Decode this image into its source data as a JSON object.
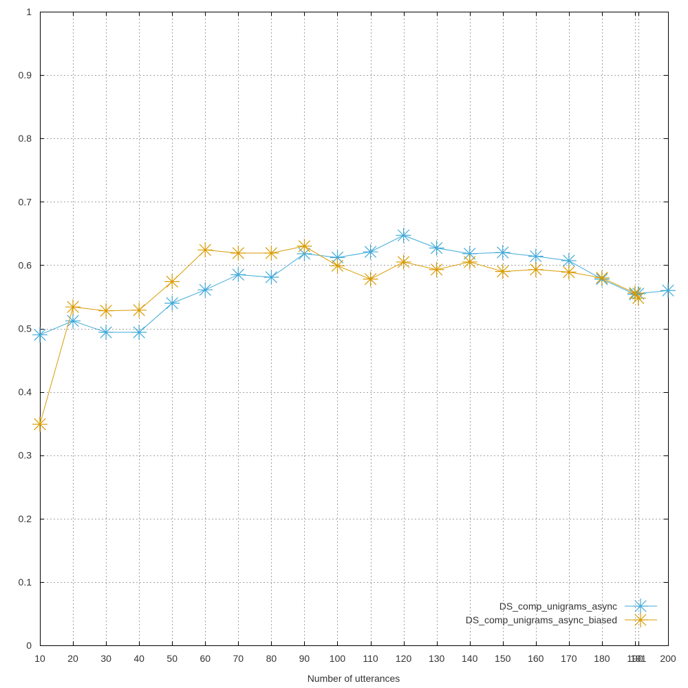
{
  "chart_data": {
    "type": "line",
    "title": "",
    "xlabel": "Number of utterances",
    "ylabel": "",
    "xlim": [
      10,
      200
    ],
    "ylim": [
      0,
      1
    ],
    "x_ticks": [
      10,
      20,
      30,
      40,
      50,
      60,
      70,
      80,
      90,
      100,
      110,
      120,
      130,
      140,
      150,
      160,
      170,
      180,
      190,
      191,
      200
    ],
    "x_tick_labels": [
      "10",
      "20",
      "30",
      "40",
      "50",
      "60",
      "70",
      "80",
      "90",
      "100",
      "110",
      "120",
      "130",
      "140",
      "150",
      "160",
      "170",
      "180",
      "190",
      "191",
      "200"
    ],
    "y_ticks": [
      0,
      0.1,
      0.2,
      0.3,
      0.4,
      0.5,
      0.6,
      0.7,
      0.8,
      0.9,
      1
    ],
    "y_tick_labels": [
      "0",
      "0.1",
      "0.2",
      "0.3",
      "0.4",
      "0.5",
      "0.6",
      "0.7",
      "0.8",
      "0.9",
      "1"
    ],
    "grid": true,
    "legend_position": "bottom-right",
    "series": [
      {
        "name": "DS_comp_unigrams_async",
        "color": "#3fa9d8",
        "marker": "asterisk",
        "x": [
          10,
          20,
          30,
          40,
          50,
          60,
          70,
          80,
          90,
          100,
          110,
          120,
          130,
          140,
          150,
          160,
          170,
          180,
          190,
          191,
          200
        ],
        "y": [
          0.49,
          0.512,
          0.494,
          0.494,
          0.54,
          0.561,
          0.585,
          0.581,
          0.618,
          0.612,
          0.621,
          0.647,
          0.627,
          0.618,
          0.62,
          0.614,
          0.607,
          0.578,
          0.554,
          0.555,
          0.56
        ]
      },
      {
        "name": "DS_comp_unigrams_async_biased",
        "color": "#d99a00",
        "marker": "asterisk",
        "x": [
          10,
          20,
          30,
          40,
          50,
          60,
          70,
          80,
          90,
          100,
          110,
          120,
          130,
          140,
          150,
          160,
          170,
          180,
          190,
          191
        ],
        "y": [
          0.349,
          0.534,
          0.528,
          0.529,
          0.574,
          0.624,
          0.619,
          0.619,
          0.63,
          0.599,
          0.578,
          0.605,
          0.593,
          0.605,
          0.59,
          0.593,
          0.589,
          0.58,
          0.556,
          0.548
        ]
      }
    ]
  }
}
